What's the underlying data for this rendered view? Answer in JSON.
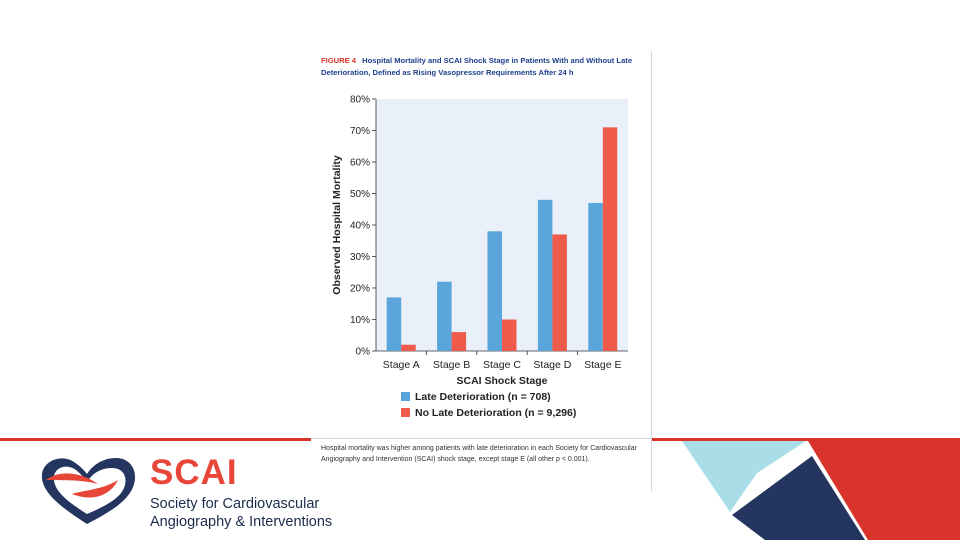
{
  "figure": {
    "number": "FIGURE 4",
    "title": "Hospital Mortality and SCAI Shock Stage in Patients With and Without Late Deterioration, Defined as Rising Vasopressor Requirements After 24 h",
    "caption": "Hospital mortality was higher among patients with late deterioration in each Society for Cardiovascular Angiography and Intervention (SCAI) shock stage, except stage E (all other p < 0.001)."
  },
  "logo": {
    "name": "SCAI",
    "line1": "Society for Cardiovascular",
    "line2": "Angiography & Interventions"
  },
  "colors": {
    "late": "#5aa6dc",
    "no_late": "#ee5b4a",
    "plot_bg": "#eaf0f9",
    "accent_red": "#d9342b",
    "navy": "#24365f",
    "light_blue": "#a9dde8"
  },
  "chart_data": {
    "type": "bar",
    "title": "",
    "xlabel": "SCAI Shock Stage",
    "ylabel": "Observed Hospital Mortality",
    "ylim": [
      0,
      80
    ],
    "yticks": [
      0,
      10,
      20,
      30,
      40,
      50,
      60,
      70,
      80
    ],
    "ytick_labels": [
      "0%",
      "10%",
      "20%",
      "30%",
      "40%",
      "50%",
      "60%",
      "70%",
      "80%"
    ],
    "categories": [
      "Stage A",
      "Stage B",
      "Stage C",
      "Stage D",
      "Stage E"
    ],
    "series": [
      {
        "name": "Late Deterioration (n = 708)",
        "values": [
          17,
          22,
          38,
          48,
          47
        ]
      },
      {
        "name": "No Late Deterioration (n = 9,296)",
        "values": [
          2,
          6,
          10,
          37,
          71
        ]
      }
    ],
    "legend_position": "bottom"
  }
}
